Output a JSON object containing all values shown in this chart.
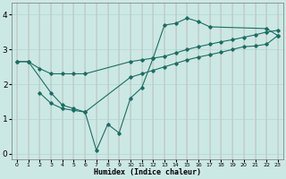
{
  "xlabel": "Humidex (Indice chaleur)",
  "bg_color": "#cce8e4",
  "grid_color": "#aad4d0",
  "line_color": "#1a6e62",
  "xlim": [
    -0.5,
    23.5
  ],
  "ylim": [
    -0.15,
    4.35
  ],
  "xticks": [
    0,
    1,
    2,
    3,
    4,
    5,
    6,
    7,
    8,
    9,
    10,
    11,
    12,
    13,
    14,
    15,
    16,
    17,
    18,
    19,
    20,
    21,
    22,
    23
  ],
  "yticks": [
    0,
    1,
    2,
    3,
    4
  ],
  "series": [
    {
      "x": [
        0,
        1,
        3,
        4,
        5,
        6,
        7,
        8,
        9,
        10,
        11,
        12,
        13,
        14,
        15,
        16,
        17,
        22,
        23
      ],
      "y": [
        2.65,
        2.65,
        1.75,
        1.4,
        1.3,
        1.2,
        0.1,
        0.85,
        0.6,
        1.6,
        1.9,
        2.75,
        3.7,
        3.75,
        3.9,
        3.8,
        3.65,
        3.6,
        3.4
      ]
    },
    {
      "x": [
        0,
        1,
        2,
        3,
        4,
        5,
        6,
        10,
        11,
        12,
        13,
        14,
        15,
        16,
        17,
        18,
        19,
        20,
        21,
        22,
        23
      ],
      "y": [
        2.65,
        2.65,
        2.45,
        2.3,
        2.3,
        2.3,
        2.3,
        2.65,
        2.7,
        2.75,
        2.8,
        2.9,
        3.0,
        3.08,
        3.15,
        3.22,
        3.28,
        3.35,
        3.42,
        3.5,
        3.55
      ]
    },
    {
      "x": [
        2,
        3,
        4,
        5,
        6,
        10,
        11,
        12,
        13,
        14,
        15,
        16,
        17,
        18,
        19,
        20,
        21,
        22,
        23
      ],
      "y": [
        1.75,
        1.45,
        1.3,
        1.25,
        1.2,
        2.2,
        2.3,
        2.4,
        2.5,
        2.6,
        2.7,
        2.78,
        2.85,
        2.92,
        3.0,
        3.08,
        3.1,
        3.15,
        3.4
      ]
    }
  ]
}
